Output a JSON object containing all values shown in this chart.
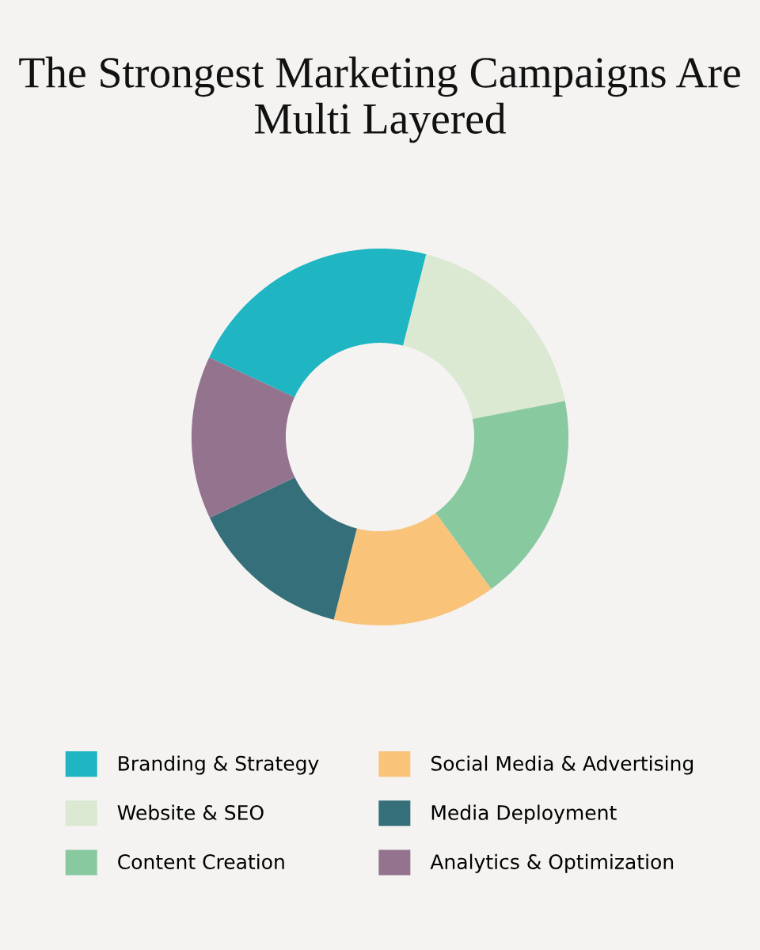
{
  "chart_data": {
    "type": "donut",
    "title": "The Strongest Marketing Campaigns Are Multi Layered",
    "categories": [
      "Branding & Strategy",
      "Website & SEO",
      "Content Creation",
      "Social Media & Advertising",
      "Media Deployment",
      "Analytics & Optimization"
    ],
    "values": [
      22,
      18,
      18,
      14,
      14,
      14
    ],
    "colors": [
      "#1fb5c3",
      "#dbe8d2",
      "#88c9a0",
      "#f9c37a",
      "#356f7a",
      "#94738f"
    ],
    "legend": "bottom"
  }
}
